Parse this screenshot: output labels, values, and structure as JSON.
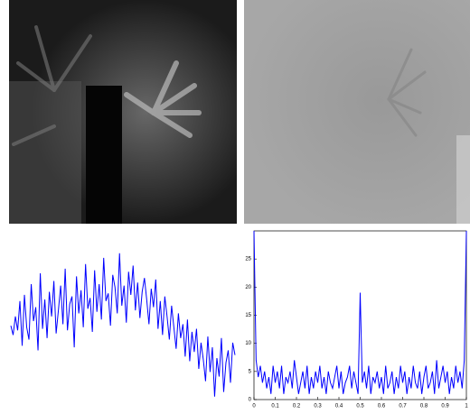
{
  "chart_data": [
    {
      "type": "line",
      "color": "#0000ff",
      "ylim": [
        0,
        11
      ],
      "values": [
        5.2,
        4.6,
        5.8,
        4.9,
        6.8,
        3.9,
        7.2,
        5.1,
        4.3,
        7.9,
        5.5,
        6.4,
        3.6,
        8.6,
        5.0,
        6.9,
        4.4,
        7.4,
        5.8,
        8.1,
        4.7,
        6.2,
        7.8,
        5.3,
        8.9,
        4.9,
        6.6,
        7.1,
        3.8,
        8.4,
        6.0,
        7.5,
        5.1,
        9.2,
        6.3,
        7.0,
        4.8,
        8.8,
        6.1,
        7.9,
        5.6,
        9.6,
        6.8,
        7.3,
        5.2,
        8.5,
        7.7,
        6.0,
        9.9,
        6.5,
        7.8,
        5.4,
        8.7,
        7.2,
        9.1,
        6.2,
        8.0,
        5.7,
        7.4,
        8.3,
        6.9,
        5.3,
        7.6,
        6.4,
        8.2,
        5.0,
        6.8,
        4.6,
        7.1,
        5.8,
        4.3,
        6.5,
        5.1,
        3.7,
        6.0,
        4.4,
        5.3,
        3.2,
        5.6,
        2.9,
        4.8,
        3.5,
        5.0,
        2.4,
        4.1,
        3.0,
        1.6,
        4.5,
        2.2,
        3.8,
        0.6,
        3.1,
        1.9,
        4.4,
        0.9,
        2.8,
        3.6,
        1.5,
        4.1,
        3.3
      ]
    },
    {
      "type": "line",
      "color": "#0000ff",
      "xlim": [
        0,
        1
      ],
      "ylim": [
        0,
        30
      ],
      "xticks": [
        0,
        0.1,
        0.2,
        0.3,
        0.4,
        0.5,
        0.6,
        0.7,
        0.8,
        0.9,
        1
      ],
      "yticks": [
        0,
        5,
        10,
        15,
        20,
        25
      ],
      "x": [
        0,
        0.01,
        0.02,
        0.03,
        0.04,
        0.05,
        0.06,
        0.07,
        0.08,
        0.09,
        0.1,
        0.11,
        0.12,
        0.13,
        0.14,
        0.15,
        0.16,
        0.17,
        0.18,
        0.19,
        0.2,
        0.21,
        0.22,
        0.23,
        0.24,
        0.25,
        0.26,
        0.27,
        0.28,
        0.29,
        0.3,
        0.31,
        0.32,
        0.33,
        0.34,
        0.35,
        0.36,
        0.37,
        0.38,
        0.39,
        0.4,
        0.41,
        0.42,
        0.43,
        0.44,
        0.45,
        0.46,
        0.47,
        0.48,
        0.49,
        0.5,
        0.51,
        0.52,
        0.53,
        0.54,
        0.55,
        0.56,
        0.57,
        0.58,
        0.59,
        0.6,
        0.61,
        0.62,
        0.63,
        0.64,
        0.65,
        0.66,
        0.67,
        0.68,
        0.69,
        0.7,
        0.71,
        0.72,
        0.73,
        0.74,
        0.75,
        0.76,
        0.77,
        0.78,
        0.79,
        0.8,
        0.81,
        0.82,
        0.83,
        0.84,
        0.85,
        0.86,
        0.87,
        0.88,
        0.89,
        0.9,
        0.91,
        0.92,
        0.93,
        0.94,
        0.95,
        0.96,
        0.97,
        0.98,
        0.99,
        1
      ],
      "values": [
        30,
        7,
        4,
        6,
        3,
        5,
        2,
        4,
        1,
        6,
        3,
        5,
        2,
        6,
        1,
        4,
        3,
        5,
        2,
        7,
        4,
        1,
        3,
        5,
        2,
        6,
        1,
        4,
        2,
        5,
        3,
        6,
        2,
        4,
        1,
        5,
        3,
        2,
        4,
        6,
        2,
        5,
        1,
        3,
        4,
        6,
        2,
        5,
        3,
        1,
        19,
        3,
        5,
        2,
        6,
        1,
        4,
        3,
        5,
        2,
        4,
        1,
        6,
        2,
        3,
        5,
        1,
        4,
        2,
        6,
        3,
        5,
        1,
        4,
        2,
        6,
        3,
        2,
        5,
        1,
        4,
        6,
        2,
        3,
        5,
        1,
        7,
        2,
        4,
        6,
        3,
        5,
        1,
        4,
        2,
        6,
        3,
        5,
        2,
        7,
        30
      ]
    }
  ]
}
